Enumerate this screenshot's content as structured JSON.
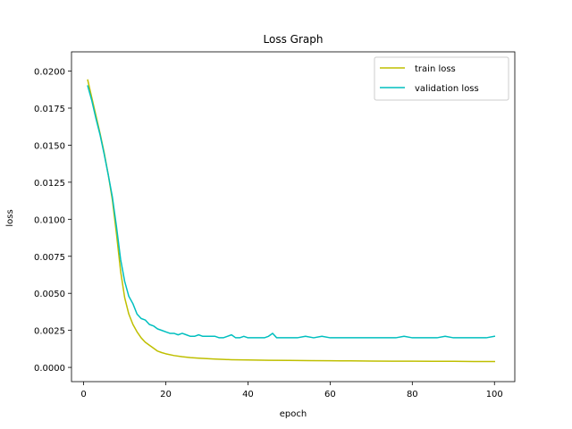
{
  "chart_data": {
    "type": "line",
    "title": "Loss Graph",
    "xlabel": "epoch",
    "ylabel": "loss",
    "xlim": [
      -2.95,
      104.95
    ],
    "ylim": [
      -0.00096,
      0.0213
    ],
    "xticks": [
      0,
      20,
      40,
      60,
      80,
      100
    ],
    "yticks": [
      0.0,
      0.0025,
      0.005,
      0.0075,
      0.01,
      0.0125,
      0.015,
      0.0175,
      0.02
    ],
    "ytick_labels": [
      "0.0000",
      "0.0025",
      "0.0050",
      "0.0075",
      "0.0100",
      "0.0125",
      "0.0150",
      "0.0175",
      "0.0200"
    ],
    "xtick_labels": [
      "0",
      "20",
      "40",
      "60",
      "80",
      "100"
    ],
    "grid": false,
    "legend_position": "top-right",
    "series": [
      {
        "name": "train loss",
        "color": "#bfbf00",
        "x": [
          1,
          2,
          3,
          4,
          5,
          6,
          7,
          8,
          9,
          10,
          11,
          12,
          13,
          14,
          15,
          16,
          17,
          18,
          19,
          20,
          22,
          24,
          26,
          28,
          30,
          32,
          34,
          36,
          38,
          40,
          45,
          50,
          55,
          60,
          65,
          70,
          75,
          80,
          85,
          90,
          95,
          100
        ],
        "values": [
          0.0194,
          0.0182,
          0.017,
          0.0158,
          0.0145,
          0.013,
          0.0113,
          0.009,
          0.0065,
          0.0047,
          0.0036,
          0.0029,
          0.0024,
          0.002,
          0.0017,
          0.0015,
          0.0013,
          0.0011,
          0.001,
          0.00092,
          0.0008,
          0.00072,
          0.00066,
          0.00062,
          0.00059,
          0.00056,
          0.00054,
          0.00052,
          0.00051,
          0.0005,
          0.00048,
          0.00047,
          0.00046,
          0.00045,
          0.00044,
          0.00043,
          0.00042,
          0.00042,
          0.00041,
          0.00041,
          0.0004,
          0.0004
        ]
      },
      {
        "name": "validation loss",
        "color": "#00bfbf",
        "x": [
          1,
          2,
          3,
          4,
          5,
          6,
          7,
          8,
          9,
          10,
          11,
          12,
          13,
          14,
          15,
          16,
          17,
          18,
          19,
          20,
          21,
          22,
          23,
          24,
          25,
          26,
          27,
          28,
          29,
          30,
          31,
          32,
          33,
          34,
          35,
          36,
          37,
          38,
          39,
          40,
          41,
          42,
          43,
          44,
          45,
          46,
          47,
          48,
          49,
          50,
          52,
          54,
          56,
          58,
          60,
          62,
          64,
          66,
          68,
          70,
          72,
          74,
          76,
          78,
          80,
          82,
          84,
          86,
          88,
          90,
          92,
          94,
          96,
          98,
          100
        ],
        "values": [
          0.019,
          0.018,
          0.0168,
          0.0157,
          0.0144,
          0.013,
          0.0115,
          0.0095,
          0.0073,
          0.0058,
          0.0048,
          0.0043,
          0.0036,
          0.0033,
          0.0032,
          0.0029,
          0.0028,
          0.0026,
          0.0025,
          0.0024,
          0.0023,
          0.0023,
          0.0022,
          0.0023,
          0.0022,
          0.0021,
          0.0021,
          0.0022,
          0.0021,
          0.0021,
          0.0021,
          0.0021,
          0.002,
          0.002,
          0.0021,
          0.0022,
          0.002,
          0.002,
          0.0021,
          0.002,
          0.002,
          0.002,
          0.002,
          0.002,
          0.0021,
          0.0023,
          0.002,
          0.002,
          0.002,
          0.002,
          0.002,
          0.0021,
          0.002,
          0.0021,
          0.002,
          0.002,
          0.002,
          0.002,
          0.002,
          0.002,
          0.002,
          0.002,
          0.002,
          0.0021,
          0.002,
          0.002,
          0.002,
          0.002,
          0.0021,
          0.002,
          0.002,
          0.002,
          0.002,
          0.002,
          0.0021
        ]
      }
    ]
  }
}
